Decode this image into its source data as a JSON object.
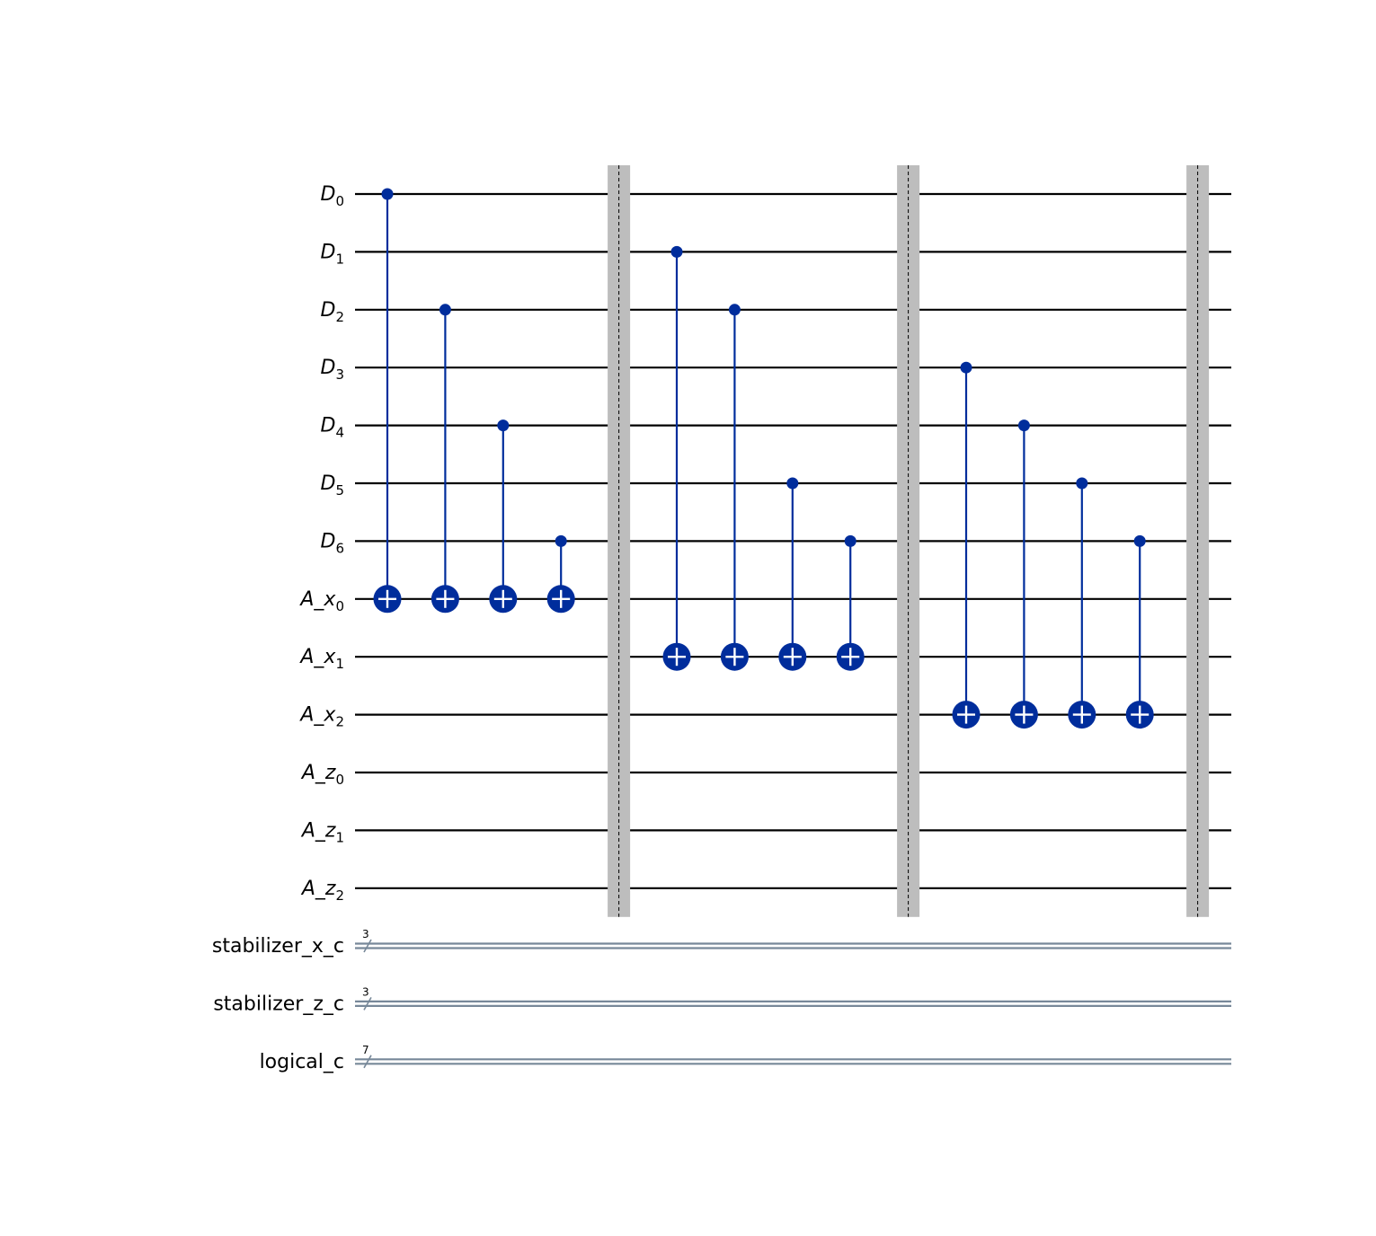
{
  "circuit": {
    "qubits": [
      {
        "name": "D",
        "index": "0"
      },
      {
        "name": "D",
        "index": "1"
      },
      {
        "name": "D",
        "index": "2"
      },
      {
        "name": "D",
        "index": "3"
      },
      {
        "name": "D",
        "index": "4"
      },
      {
        "name": "D",
        "index": "5"
      },
      {
        "name": "D",
        "index": "6"
      },
      {
        "name": "A_x",
        "index": "0"
      },
      {
        "name": "A_x",
        "index": "1"
      },
      {
        "name": "A_x",
        "index": "2"
      },
      {
        "name": "A_z",
        "index": "0"
      },
      {
        "name": "A_z",
        "index": "1"
      },
      {
        "name": "A_z",
        "index": "2"
      }
    ],
    "clbits": [
      {
        "name": "stabilizer_x_c",
        "size": "3"
      },
      {
        "name": "stabilizer_z_c",
        "size": "3"
      },
      {
        "name": "logical_c",
        "size": "7"
      }
    ],
    "gates": [
      {
        "type": "cx",
        "control": 0,
        "target": 7,
        "column": 0
      },
      {
        "type": "cx",
        "control": 2,
        "target": 7,
        "column": 1
      },
      {
        "type": "cx",
        "control": 4,
        "target": 7,
        "column": 2
      },
      {
        "type": "cx",
        "control": 6,
        "target": 7,
        "column": 3
      },
      {
        "type": "barrier",
        "column": 4
      },
      {
        "type": "cx",
        "control": 1,
        "target": 8,
        "column": 5
      },
      {
        "type": "cx",
        "control": 2,
        "target": 8,
        "column": 6
      },
      {
        "type": "cx",
        "control": 5,
        "target": 8,
        "column": 7
      },
      {
        "type": "cx",
        "control": 6,
        "target": 8,
        "column": 8
      },
      {
        "type": "barrier",
        "column": 9
      },
      {
        "type": "cx",
        "control": 3,
        "target": 9,
        "column": 10
      },
      {
        "type": "cx",
        "control": 4,
        "target": 9,
        "column": 11
      },
      {
        "type": "cx",
        "control": 5,
        "target": 9,
        "column": 12
      },
      {
        "type": "cx",
        "control": 6,
        "target": 9,
        "column": 13
      },
      {
        "type": "barrier",
        "column": 14
      }
    ],
    "colors": {
      "gate": "#002d9c",
      "wire": "#000000",
      "classical_wire": "#778899",
      "barrier": "#bdbdbd",
      "barrier_line": "#000000",
      "background": "#ffffff"
    }
  }
}
